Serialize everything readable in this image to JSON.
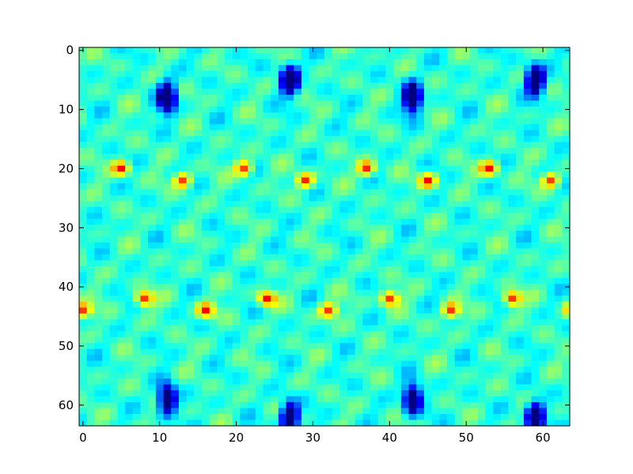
{
  "chart_data": {
    "type": "heatmap",
    "title": "",
    "xlabel": "",
    "ylabel": "",
    "colormap": "jet",
    "rows": 64,
    "cols": 64,
    "xlim": [
      -0.5,
      63.5
    ],
    "ylim": [
      63.5,
      -0.5
    ],
    "y_axis_inverted": true,
    "grid": false,
    "colorbar": false,
    "x_ticks": [
      0,
      10,
      20,
      30,
      40,
      50,
      60
    ],
    "x_tick_labels": [
      "0",
      "10",
      "20",
      "30",
      "40",
      "50",
      "60"
    ],
    "y_ticks": [
      0,
      10,
      20,
      30,
      40,
      50,
      60
    ],
    "y_tick_labels": [
      "0",
      "10",
      "20",
      "30",
      "40",
      "50",
      "60"
    ],
    "dominant_level": 0.42,
    "period_x": 16,
    "period_y": 21,
    "features": [
      {
        "kind": "peak",
        "x": 5,
        "y": 20,
        "level": 0.86
      },
      {
        "kind": "peak",
        "x": 8,
        "y": 42,
        "level": 0.88
      },
      {
        "kind": "peak",
        "x": 13,
        "y": 22,
        "level": 0.84
      },
      {
        "kind": "peak",
        "x": 16,
        "y": 44,
        "level": 0.84
      },
      {
        "kind": "peak",
        "x": 21,
        "y": 20,
        "level": 0.86
      },
      {
        "kind": "peak",
        "x": 24,
        "y": 42,
        "level": 0.88
      },
      {
        "kind": "peak",
        "x": 29,
        "y": 22,
        "level": 0.84
      },
      {
        "kind": "peak",
        "x": 32,
        "y": 44,
        "level": 0.84
      },
      {
        "kind": "trough",
        "x": 11,
        "y": 8,
        "level": 0.08
      },
      {
        "kind": "trough",
        "x": 27,
        "y": 5,
        "level": 0.08
      },
      {
        "kind": "trough",
        "x": 43,
        "y": 8,
        "level": 0.08
      },
      {
        "kind": "trough",
        "x": 59,
        "y": 5,
        "level": 0.08
      },
      {
        "kind": "trough",
        "x": 11,
        "y": 59,
        "level": 0.1
      },
      {
        "kind": "trough",
        "x": 27,
        "y": 62,
        "level": 0.1
      },
      {
        "kind": "trough",
        "x": 43,
        "y": 59,
        "level": 0.1
      },
      {
        "kind": "trough",
        "x": 59,
        "y": 62,
        "level": 0.1
      }
    ]
  }
}
